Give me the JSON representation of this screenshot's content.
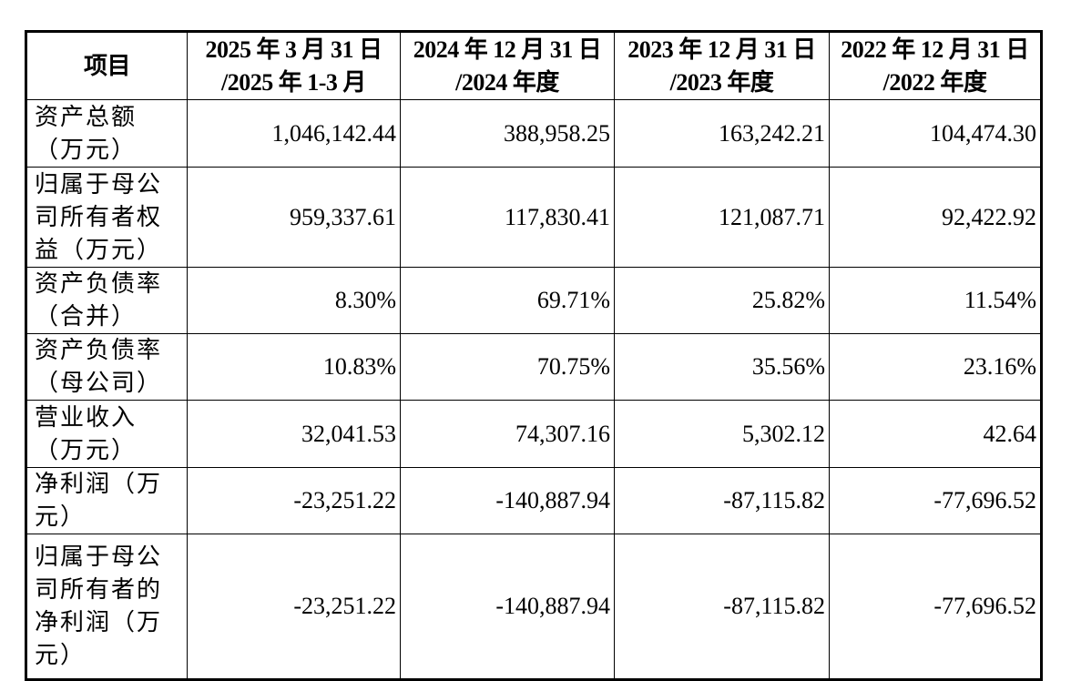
{
  "table": {
    "headers": [
      [
        "项目"
      ],
      [
        "2025 年 3 月 31 日",
        "/2025 年 1-3 月"
      ],
      [
        "2024 年 12 月 31 日",
        "/2024 年度"
      ],
      [
        "2023 年 12 月 31 日",
        "/2023 年度"
      ],
      [
        "2022 年 12 月 31 日",
        "/2022 年度"
      ]
    ],
    "rows": [
      {
        "label": "资产总额（万元）",
        "values": [
          "1,046,142.44",
          "388,958.25",
          "163,242.21",
          "104,474.30"
        ]
      },
      {
        "label": "归属于母公司所有者权益（万元）",
        "values": [
          "959,337.61",
          "117,830.41",
          "121,087.71",
          "92,422.92"
        ]
      },
      {
        "label": "资产负债率（合并）",
        "values": [
          "8.30%",
          "69.71%",
          "25.82%",
          "11.54%"
        ]
      },
      {
        "label": "资产负债率（母公司）",
        "values": [
          "10.83%",
          "70.75%",
          "35.56%",
          "23.16%"
        ]
      },
      {
        "label": "营业收入（万元）",
        "values": [
          "32,041.53",
          "74,307.16",
          "5,302.12",
          "42.64"
        ]
      },
      {
        "label": "净利润（万元）",
        "values": [
          "-23,251.22",
          "-140,887.94",
          "-87,115.82",
          "-77,696.52"
        ]
      },
      {
        "label": "归属于母公司所有者的净利润（万元）",
        "values": [
          "-23,251.22",
          "-140,887.94",
          "-87,115.82",
          "-77,696.52"
        ]
      }
    ]
  }
}
